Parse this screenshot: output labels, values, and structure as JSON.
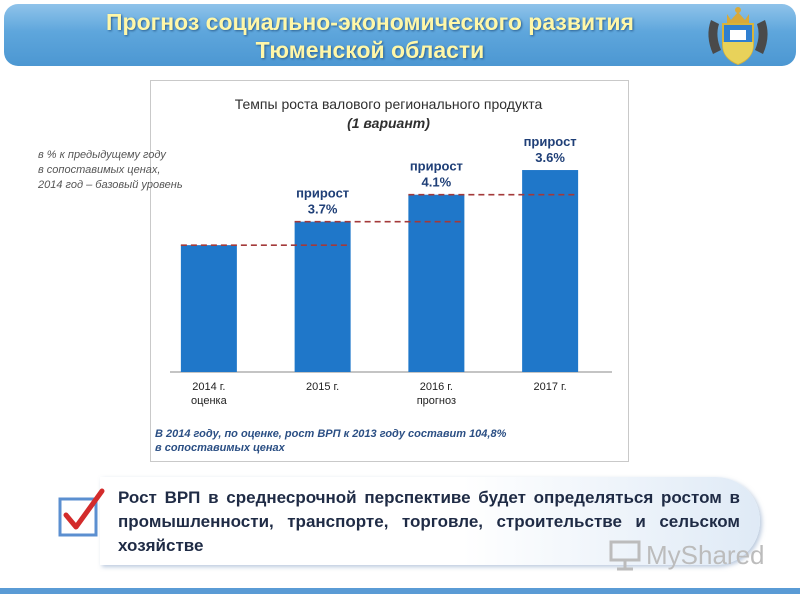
{
  "header": {
    "title_line1": "Прогноз социально-экономического развития",
    "title_line2": "Тюменской области"
  },
  "chart_note": {
    "line1": "в % к предыдущему году",
    "line2": "в сопоставимых ценах,",
    "line3": "2014 год – базовый уровень"
  },
  "chart_data": {
    "type": "bar",
    "title": "Темпы роста валового регионального продукта",
    "subtitle": "(1 вариант)",
    "categories": [
      {
        "line1": "2014 г.",
        "line2": "оценка"
      },
      {
        "line1": "2015 г.",
        "line2": ""
      },
      {
        "line1": "2016 г.",
        "line2": "прогноз"
      },
      {
        "line1": "2017 г.",
        "line2": ""
      }
    ],
    "values": [
      100,
      103.7,
      107.95,
      111.84
    ],
    "ylim": [
      80,
      115
    ],
    "bar_color": "#1f77c9",
    "baseline_color": "#a33a3a",
    "grid": false,
    "annotations": [
      null,
      {
        "label": "прирост",
        "value": "3.7%"
      },
      {
        "label": "прирост",
        "value": "4.1%"
      },
      {
        "label": "прирост",
        "value": "3.6%"
      }
    ],
    "footnote_line1": "В 2014 году, по оценке, рост ВРП к 2013 году составит 104,8%",
    "footnote_line2": "в сопоставимых ценах"
  },
  "conclusion": {
    "text": "Рост ВРП в среднесрочной перспективе будет определяться ростом в промышленности, транспорте, торговле, строительстве и сельском хозяйстве"
  },
  "watermark": {
    "text": "MyShared"
  },
  "icons": {
    "emblem": "coat-of-arms-icon",
    "checkbox": "checkbox-checked-icon",
    "watermark": "presentation-icon"
  }
}
